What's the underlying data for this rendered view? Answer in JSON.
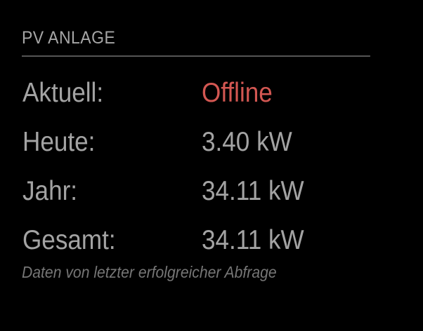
{
  "module": {
    "title": "PV ANLAGE",
    "rows": [
      {
        "label": "Aktuell:",
        "value": "Offline"
      },
      {
        "label": "Heute:",
        "value": "3.40 kW"
      },
      {
        "label": "Jahr:",
        "value": "34.11 kW"
      },
      {
        "label": "Gesamt:",
        "value": "34.11 kW"
      }
    ],
    "footnote": "Daten von letzter erfolgreicher Abfrage"
  },
  "colors": {
    "background": "#000000",
    "text": "#a3a3a3",
    "status_offline": "#d35752",
    "divider": "#555555",
    "footnote": "#767676"
  }
}
